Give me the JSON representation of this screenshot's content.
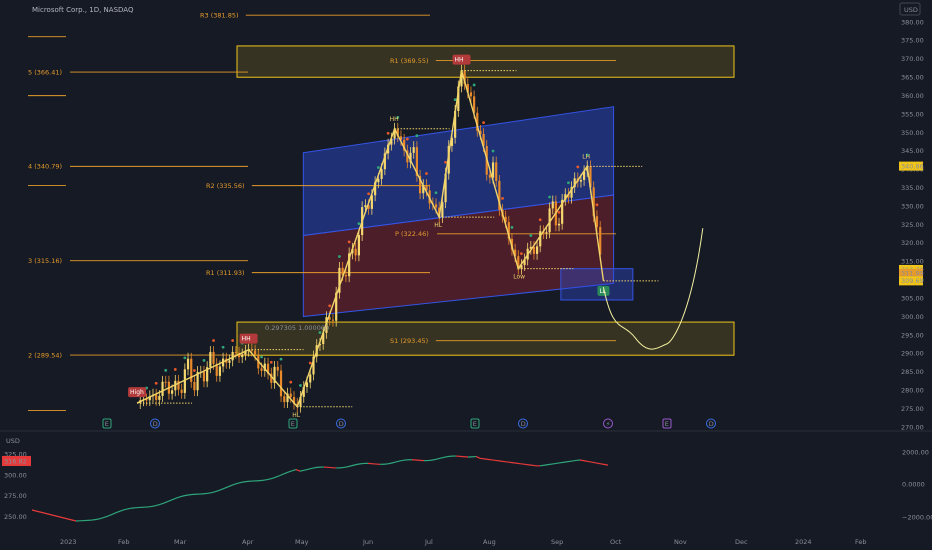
{
  "chart_data": {
    "type": "candlestick-with-indicators",
    "title": "Microsoft Corp., 1D, NASDAQ",
    "currency": "USD",
    "price_axis": {
      "min": 270,
      "max": 380,
      "ticks": [
        380,
        375,
        370,
        365,
        360,
        355,
        350,
        345,
        340,
        335,
        330,
        325,
        320,
        315,
        310,
        305,
        300,
        295,
        290,
        285,
        280,
        275,
        270
      ]
    },
    "lower_panel": {
      "left_label": "USD",
      "left_ticks": [
        325,
        300,
        275,
        250
      ],
      "left_ticks_text": [
        "325.00",
        "300.00",
        "275.00",
        "250.00"
      ],
      "right_ticks_text": [
        "2000.00",
        "0.0000",
        "−2000.00"
      ],
      "current_value_text": "316.82"
    },
    "time_axis": [
      "2023",
      "Feb",
      "Mar",
      "Apr",
      "May",
      "Jun",
      "Jul",
      "Aug",
      "Sep",
      "Oct",
      "Nov",
      "Dec",
      "2024",
      "Feb"
    ],
    "last_price_labels": [
      {
        "text": "340.86",
        "price": 340.86,
        "color": "#f0c419",
        "text_color": "#161a25"
      },
      {
        "text": "312.79",
        "price": 312.79,
        "color": "#f0c419",
        "text_color": "#161a25"
      },
      {
        "text": "311.99",
        "price": 311.99,
        "color": "#e59a2a",
        "text_color": "#161a25"
      },
      {
        "text": "309.69",
        "price": 309.69,
        "color": "#f0c419",
        "text_color": "#161a25"
      }
    ],
    "levels": [
      {
        "label": "R3 (381.85)",
        "price": 381.85
      },
      {
        "label": "R1 (369.55)",
        "price": 369.55
      },
      {
        "label": "R5 (366.41)",
        "price": 366.41,
        "shown": "5 (366.41)"
      },
      {
        "label": "R4 (340.79)",
        "price": 340.79,
        "shown": "4 (340.79)"
      },
      {
        "label": "R2 (335.56)",
        "price": 335.56
      },
      {
        "label": "P (322.46)",
        "price": 322.46
      },
      {
        "label": "R3 (315.16)",
        "price": 315.16,
        "shown": "3 (315.16)"
      },
      {
        "label": "R1 (311.93)",
        "price": 311.93
      },
      {
        "label": "S1 (293.45)",
        "price": 293.45
      },
      {
        "label": "R2 (289.54)",
        "price": 289.54,
        "shown": "2 (289.54)"
      }
    ],
    "zigzag": [
      {
        "date": "2023-02-08",
        "price": 276.5,
        "label": "High"
      },
      {
        "date": "2023-04-04",
        "price": 291,
        "label": "HH"
      },
      {
        "date": "2023-04-28",
        "price": 275.5,
        "label": "HL"
      },
      {
        "date": "2023-06-15",
        "price": 351,
        "label": "HH"
      },
      {
        "date": "2023-07-07",
        "price": 327,
        "label": "HL"
      },
      {
        "date": "2023-07-18",
        "price": 366.8,
        "label": "HH"
      },
      {
        "date": "2023-08-15",
        "price": 313,
        "label": "Low"
      },
      {
        "date": "2023-09-18",
        "price": 340.8,
        "label": "LH"
      },
      {
        "date": "2023-09-26",
        "price": 309.7,
        "label": "LL"
      }
    ],
    "annotations": [
      "0.297305",
      "1.000000"
    ],
    "event_markers": [
      "E",
      "D",
      "E",
      "D",
      "E",
      "D",
      "⚡",
      "E",
      "D"
    ],
    "series_line_color": "#f0d46a",
    "channel_top_color": "#2c4bd4",
    "channel_bottom_color": "#7a2330",
    "zone_color": "#f0c419"
  }
}
